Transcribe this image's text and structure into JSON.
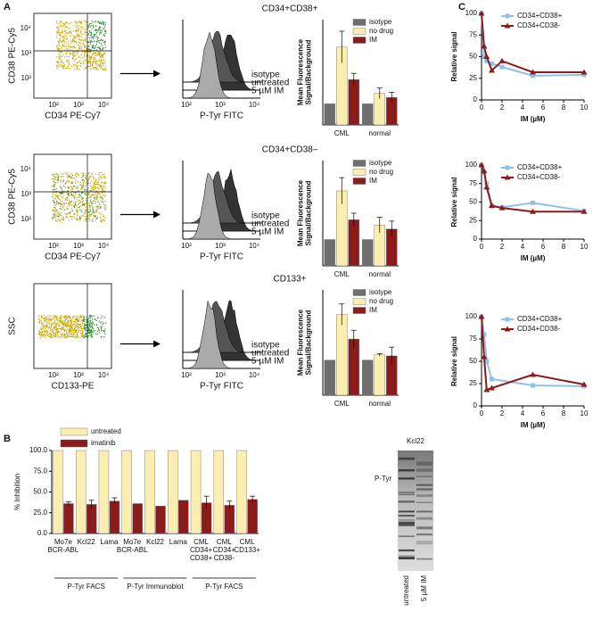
{
  "panel_labels": [
    "A",
    "B",
    "C"
  ],
  "flow_plots": [
    {
      "ylabel": "CD38 PE-Cy5",
      "xlabel": "CD34 PE-Cy7",
      "xticks": [
        "10²",
        "10³",
        "10⁴"
      ],
      "yticks": [
        "10²",
        "10³",
        "10⁴"
      ]
    },
    {
      "ylabel": "CD38 PE-Cy5",
      "xlabel": "CD34 PE-Cy7",
      "xticks": [
        "10²",
        "10³",
        "10⁴"
      ],
      "yticks": [
        "10²",
        "10³",
        "10⁴"
      ]
    },
    {
      "ylabel": "SSC",
      "xlabel": "CD133-PE",
      "xticks": [
        "10²",
        "10³",
        "10⁴"
      ]
    }
  ],
  "histograms": [
    {
      "labels": [
        "isotype",
        "untreated",
        "5 µM IM"
      ],
      "xlabel": "P-Tyr FITC",
      "xticks": [
        "10²",
        "10³",
        "10⁴"
      ]
    },
    {
      "labels": [
        "isotype",
        "untreated",
        "5 µM IM"
      ],
      "xlabel": "P-Tyr FITC",
      "xticks": [
        "10²",
        "10³",
        "10⁴"
      ]
    },
    {
      "labels": [
        "isotype",
        "untreated",
        "5 µM IM"
      ],
      "xlabel": "P-Tyr FITC",
      "xticks": [
        "10²",
        "10³",
        "10⁴"
      ]
    }
  ],
  "blot": {
    "title": "Kcl22",
    "row_label": "P-Tyr",
    "lanes": [
      "untreated",
      "5 µM IM"
    ]
  },
  "group_labels": [
    "P-Tyr FACS",
    "P-Tyr Immunoblot",
    "P-Tyr FACS"
  ],
  "chart_data": [
    {
      "type": "bar",
      "title": "CD34+CD38+",
      "ylabel": "Mean Fluorescence\nSignal/Background",
      "categories": [
        "CML",
        "normal"
      ],
      "ylim": [
        0,
        5
      ],
      "series": [
        {
          "name": "isotype",
          "color": "#6e6e6e",
          "values": [
            1,
            1
          ]
        },
        {
          "name": "no drug",
          "color": "#fbeeb0",
          "values": [
            3.7,
            1.5
          ],
          "errors": [
            0.75,
            0.25
          ]
        },
        {
          "name": "IM",
          "color": "#8c1c1c",
          "values": [
            2.15,
            1.3
          ],
          "errors": [
            0.3,
            0.25
          ]
        }
      ]
    },
    {
      "type": "bar",
      "title": "CD34+CD38–",
      "ylabel": "Mean Fluorescence\nSignal/Background",
      "categories": [
        "CML",
        "normal"
      ],
      "ylim": [
        0,
        4
      ],
      "series": [
        {
          "name": "isotype",
          "color": "#6e6e6e",
          "values": [
            1,
            1
          ]
        },
        {
          "name": "no drug",
          "color": "#fbeeb0",
          "values": [
            2.85,
            1.55
          ],
          "errors": [
            0.5,
            0.3
          ]
        },
        {
          "name": "IM",
          "color": "#8c1c1c",
          "values": [
            1.75,
            1.4
          ],
          "errors": [
            0.25,
            0.3
          ]
        }
      ]
    },
    {
      "type": "bar",
      "title": "CD133+",
      "ylabel": "Mean Fluorescence\nSignal/Background",
      "categories": [
        "CML",
        "normal"
      ],
      "ylim": [
        0,
        3
      ],
      "series": [
        {
          "name": "isotype",
          "color": "#6e6e6e",
          "values": [
            1,
            1
          ]
        },
        {
          "name": "no drug",
          "color": "#fbeeb0",
          "values": [
            2.3,
            1.15
          ],
          "errors": [
            0.3,
            0.03
          ]
        },
        {
          "name": "IM",
          "color": "#8c1c1c",
          "values": [
            1.6,
            1.12
          ],
          "errors": [
            0.25,
            0.25
          ]
        }
      ]
    },
    {
      "type": "bar",
      "ylabel": "% Inhibition",
      "categories": [
        "Mo7e\nBCR-ABL",
        "Kcl22",
        "Lama",
        "Mo7e\nBCR-ABL",
        "Kcl22",
        "Lama",
        "CML\nCD34+\nCD38+",
        "CML\nCD34+\nCD38-",
        "CML\nCD133+"
      ],
      "ylim": [
        0,
        100
      ],
      "yticks": [
        {
          "value": 0,
          "label": "0.0"
        },
        {
          "value": 25,
          "label": "25.0"
        },
        {
          "value": 50,
          "label": "50.0"
        },
        {
          "value": 75,
          "label": "75.0"
        },
        {
          "value": 100,
          "label": "100.0"
        }
      ],
      "series": [
        {
          "name": "untreated",
          "color": "#fbeeb0",
          "values": [
            100,
            100,
            100,
            100,
            100,
            100,
            100,
            100,
            100
          ]
        },
        {
          "name": "imatinib",
          "color": "#8c1c1c",
          "values": [
            36,
            35,
            39,
            36,
            33,
            40,
            37,
            34,
            41
          ],
          "errors": [
            2,
            5,
            4,
            0,
            0,
            0,
            8,
            5,
            4
          ]
        }
      ]
    },
    {
      "type": "line",
      "ylabel": "Relative signal",
      "xlabel": "IM (µM)",
      "xlim": [
        0,
        10
      ],
      "ylim": [
        0,
        100
      ],
      "xticks": [
        0,
        2,
        4,
        6,
        8,
        10
      ],
      "yticks": [
        0,
        25,
        50,
        75,
        100
      ],
      "series": [
        {
          "name": "CD34+CD38+",
          "color": "#8fc1ea",
          "marker": "square",
          "x": [
            0,
            0.25,
            0.5,
            1,
            2,
            5,
            10
          ],
          "values": [
            100,
            50,
            45,
            42,
            38,
            28,
            29
          ]
        },
        {
          "name": "CD34+CD38-",
          "color": "#8c1c1c",
          "marker": "triangle",
          "x": [
            0,
            0.25,
            0.5,
            1,
            2,
            5,
            10
          ],
          "values": [
            100,
            62,
            50,
            34,
            45,
            32,
            32
          ]
        }
      ]
    },
    {
      "type": "line",
      "ylabel": "Relative signal",
      "xlabel": "IM (µM)",
      "xlim": [
        0,
        10
      ],
      "ylim": [
        0,
        100
      ],
      "xticks": [
        0,
        2,
        4,
        6,
        8,
        10
      ],
      "yticks": [
        0,
        25,
        50,
        75,
        100
      ],
      "series": [
        {
          "name": "CD34+CD38+",
          "color": "#8fc1ea",
          "marker": "square",
          "x": [
            0,
            0.25,
            0.5,
            1,
            2,
            5,
            10
          ],
          "values": [
            100,
            90,
            75,
            45,
            43,
            49,
            38
          ]
        },
        {
          "name": "CD34+CD38-",
          "color": "#8c1c1c",
          "marker": "triangle",
          "x": [
            0,
            0.25,
            0.5,
            1,
            2,
            5,
            10
          ],
          "values": [
            100,
            92,
            70,
            45,
            42,
            37,
            37
          ]
        }
      ]
    },
    {
      "type": "line",
      "ylabel": "Relative signal",
      "xlabel": "IM (µM)",
      "xlim": [
        0,
        10
      ],
      "ylim": [
        0,
        100
      ],
      "xticks": [
        0,
        2,
        4,
        6,
        8,
        10
      ],
      "yticks": [
        0,
        25,
        50,
        75,
        100
      ],
      "series": [
        {
          "name": "CD34+CD38+",
          "color": "#8fc1ea",
          "marker": "square",
          "x": [
            0,
            0.25,
            0.5,
            1,
            5,
            10
          ],
          "values": [
            100,
            80,
            50,
            30,
            23,
            22
          ]
        },
        {
          "name": "CD34+CD38-",
          "color": "#8c1c1c",
          "marker": "triangle",
          "x": [
            0,
            0.25,
            0.5,
            1,
            5,
            10
          ],
          "values": [
            100,
            55,
            18,
            20,
            35,
            24
          ]
        }
      ]
    }
  ]
}
